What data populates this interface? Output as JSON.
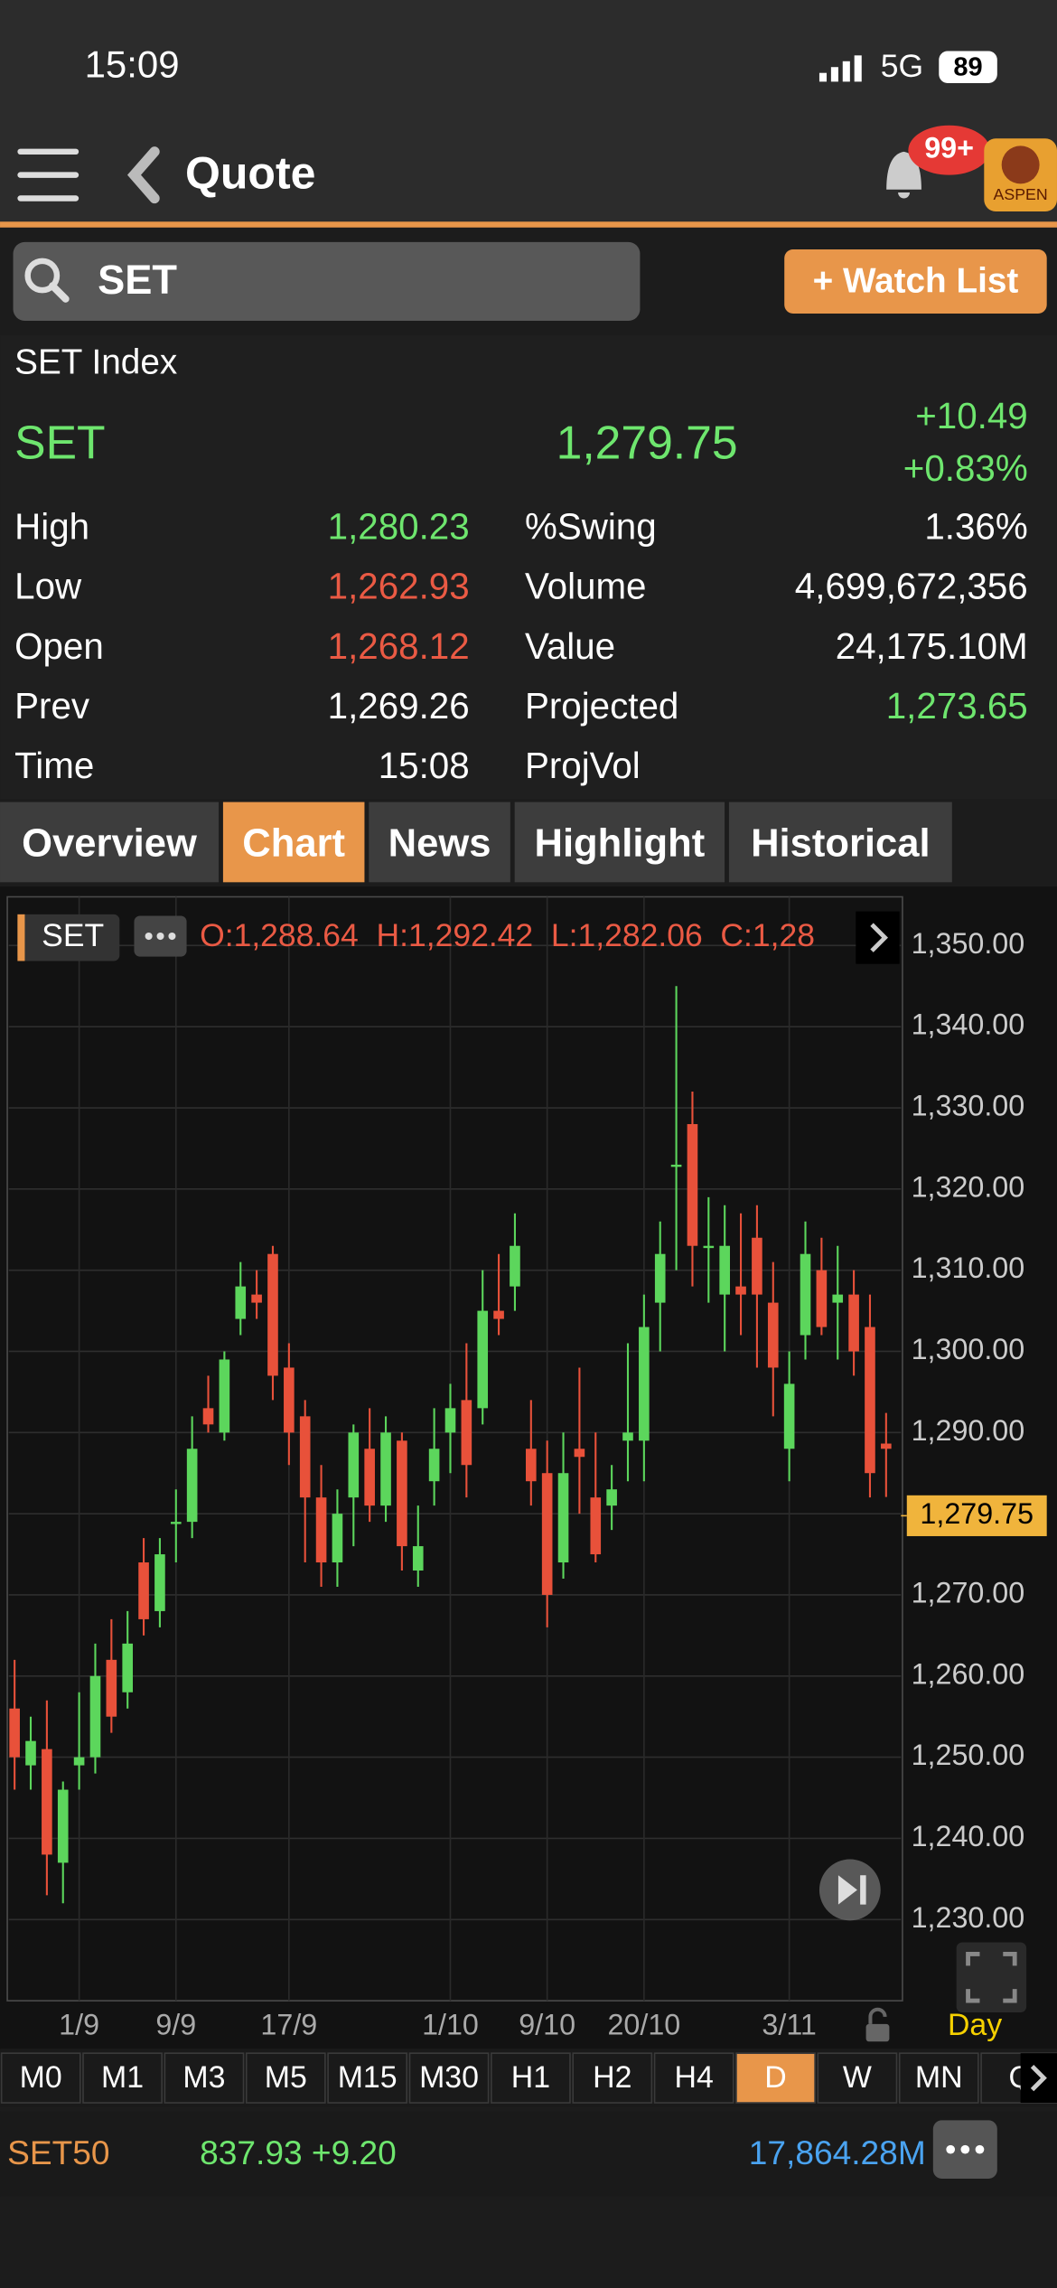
{
  "status": {
    "time": "15:09",
    "network": "5G",
    "battery": "89"
  },
  "nav": {
    "title": "Quote",
    "badge": "99+",
    "logo": "ASPEN"
  },
  "search": {
    "query": "SET",
    "button": "+ Watch List"
  },
  "quote": {
    "name": "SET Index",
    "symbol": "SET",
    "last": "1,279.75",
    "change": "+10.49",
    "change_pct": "+0.83%",
    "stats_left": [
      {
        "label": "High",
        "value": "1,280.23",
        "color": "#6ee66e"
      },
      {
        "label": "Low",
        "value": "1,262.93",
        "color": "#ea5a44"
      },
      {
        "label": "Open",
        "value": "1,268.12",
        "color": "#ea5a44"
      },
      {
        "label": "Prev",
        "value": "1,269.26",
        "color": "#ffffff"
      },
      {
        "label": "Time",
        "value": "15:08",
        "color": "#ffffff"
      }
    ],
    "stats_right": [
      {
        "label": "%Swing",
        "value": "1.36%",
        "color": "#ffffff"
      },
      {
        "label": "Volume",
        "value": "4,699,672,356",
        "color": "#ffffff"
      },
      {
        "label": "Value",
        "value": "24,175.10M",
        "color": "#ffffff"
      },
      {
        "label": "Projected",
        "value": "1,273.65",
        "color": "#6ee66e"
      },
      {
        "label": "ProjVol"
      }
    ]
  },
  "tabs": {
    "items": [
      "Overview",
      "Chart",
      "News",
      "Highlight",
      "Historical"
    ],
    "active": 1
  },
  "chart_data": {
    "type": "candlestick",
    "symbol": "SET",
    "legend": "O:1,288.64  H:1,292.42  L:1,282.06  C:1,28",
    "period": "Day",
    "up_color": "#5cd65c",
    "down_color": "#e8513a",
    "categories": [
      null,
      null,
      null,
      null,
      "1/9",
      null,
      null,
      null,
      null,
      null,
      "9/9",
      null,
      null,
      null,
      null,
      null,
      null,
      "17/9",
      null,
      null,
      null,
      null,
      null,
      null,
      null,
      null,
      null,
      "1/10",
      null,
      null,
      null,
      null,
      null,
      "9/10",
      null,
      null,
      null,
      null,
      null,
      "20/10",
      null,
      null,
      null,
      null,
      null,
      null,
      null,
      null,
      "3/11",
      null,
      null,
      null,
      null,
      null,
      null
    ],
    "open": [
      1256,
      1249,
      1251,
      1237,
      1249,
      1250,
      1262,
      1258,
      1274,
      1268,
      1279,
      1279,
      1293,
      1290,
      1304,
      1307,
      1312,
      1298,
      1292,
      1282,
      1274,
      1282,
      1288,
      1281,
      1289,
      1273,
      1284,
      1290,
      1294,
      1293,
      1305,
      1308,
      1288,
      1285,
      1274,
      1288,
      1282,
      1281,
      1289,
      1289,
      1306,
      1323,
      1328,
      1313,
      1307,
      1308,
      1314,
      1306,
      1288,
      1302,
      1310,
      1306,
      1307,
      1303,
      1288.64
    ],
    "high": [
      1262,
      1255,
      1257,
      1247,
      1258,
      1264,
      1267,
      1268,
      1277,
      1277,
      1283,
      1292,
      1297,
      1300,
      1311,
      1310,
      1313,
      1301,
      1294,
      1286,
      1283,
      1291,
      1293,
      1292,
      1290,
      1281,
      1293,
      1296,
      1301,
      1310,
      1312,
      1317,
      1294,
      1289,
      1290,
      1298,
      1290,
      1286,
      1301,
      1307,
      1316,
      1345,
      1332,
      1319,
      1318,
      1317,
      1318,
      1311,
      1300,
      1316,
      1314,
      1313,
      1310,
      1307,
      1292.42
    ],
    "low": [
      1246,
      1246,
      1233,
      1232,
      1246,
      1248,
      1253,
      1256,
      1265,
      1266,
      1274,
      1277,
      1290,
      1289,
      1302,
      1304,
      1294,
      1286,
      1274,
      1271,
      1271,
      1276,
      1279,
      1279,
      1273,
      1271,
      1281,
      1285,
      1282,
      1291,
      1302,
      1305,
      1281,
      1266,
      1272,
      1280,
      1274,
      1278,
      1284,
      1284,
      1300,
      1310,
      1308,
      1306,
      1300,
      1302,
      1298,
      1292,
      1284,
      1299,
      1302,
      1299,
      1297,
      1282,
      1282.06
    ],
    "close": [
      1250,
      1252,
      1238,
      1246,
      1250,
      1260,
      1255,
      1264,
      1267,
      1275,
      1279,
      1288,
      1291,
      1299,
      1308,
      1306,
      1297,
      1290,
      1282,
      1274,
      1280,
      1290,
      1281,
      1290,
      1276,
      1276,
      1288,
      1293,
      1286,
      1305,
      1304,
      1313,
      1284,
      1270,
      1285,
      1287,
      1275,
      1283,
      1290,
      1303,
      1312,
      1323,
      1313,
      1313,
      1313,
      1307,
      1307,
      1298,
      1296,
      1312,
      1303,
      1307,
      1300,
      1285,
      1288
    ],
    "ylim": [
      1220,
      1356
    ],
    "yticks": [
      {
        "value": 1230,
        "label": "1,230.00"
      },
      {
        "value": 1240,
        "label": "1,240.00"
      },
      {
        "value": 1250,
        "label": "1,250.00"
      },
      {
        "value": 1260,
        "label": "1,260.00"
      },
      {
        "value": 1270,
        "label": "1,270.00"
      },
      {
        "value": 1280,
        "label": "1,280.00"
      },
      {
        "value": 1290,
        "label": "1,290.00"
      },
      {
        "value": 1300,
        "label": "1,300.00"
      },
      {
        "value": 1310,
        "label": "1,310.00"
      },
      {
        "value": 1320,
        "label": "1,320.00"
      },
      {
        "value": 1330,
        "label": "1,330.00"
      },
      {
        "value": 1340,
        "label": "1,340.00"
      },
      {
        "value": 1350,
        "label": "1,350.00"
      }
    ],
    "last_price": {
      "value": 1279.75,
      "label": "1,279.75"
    },
    "grid": true
  },
  "timeframes": {
    "items": [
      "M0",
      "M1",
      "M3",
      "M5",
      "M15",
      "M30",
      "H1",
      "H2",
      "H4",
      "D",
      "W",
      "MN",
      "Q"
    ],
    "active": 9
  },
  "ticker": {
    "symbol": "SET50",
    "price": "837.93 +9.20",
    "value": "17,864.28M"
  }
}
